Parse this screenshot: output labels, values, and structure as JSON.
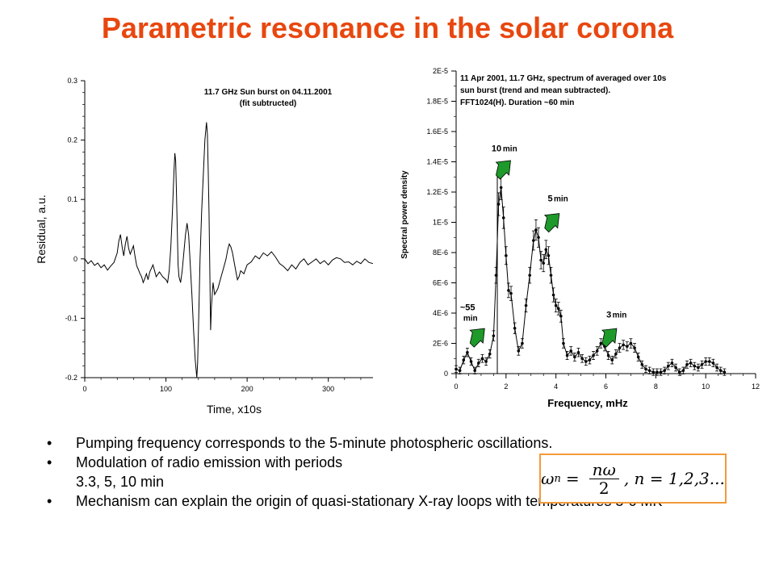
{
  "title": "Parametric resonance in the solar corona",
  "bullets": [
    "Pumping frequency corresponds to the 5-minute photospheric oscillations.",
    "Modulation of radio emission with periods",
    "3.3, 5, 10 min",
    "Mechanism can explain the origin of quasi-stationary X-ray loops with temperatures 3-6 MK"
  ],
  "formula": {
    "lhs": "ω",
    "subscript": "n",
    "equals": "=",
    "numerator": "nω",
    "denominator": "2",
    "tail": ",  n = 1,2,3..."
  },
  "chart_data": [
    {
      "type": "line",
      "annotation": [
        "11.7 GHz Sun burst on 04.11.2001",
        "(fit subtructed)"
      ],
      "xlabel": "Time, x10s",
      "ylabel": "Residual, a.u.",
      "xlim": [
        0,
        355
      ],
      "ylim": [
        -0.2,
        0.3
      ],
      "xticks": [
        0,
        100,
        200,
        300
      ],
      "yticks": [
        -0.2,
        -0.1,
        0,
        0.1,
        0.2,
        0.3
      ],
      "ytick_labels": [
        "-0.2",
        "-0.1",
        "0",
        "0.1",
        "0.2",
        "0.3"
      ],
      "grid": false,
      "series": [
        {
          "x": [
            0,
            4,
            8,
            12,
            16,
            20,
            24,
            28,
            32,
            36,
            40,
            42,
            44,
            46,
            48,
            50,
            52,
            54,
            56,
            58,
            60,
            62,
            64,
            66,
            68,
            70,
            72,
            74,
            76,
            78,
            80,
            84,
            88,
            92,
            96,
            100,
            102,
            104,
            106,
            108,
            110,
            111,
            112,
            113,
            114,
            115,
            116,
            118,
            120,
            122,
            124,
            126,
            128,
            130,
            132,
            134,
            136,
            138,
            139,
            140,
            141,
            142,
            144,
            146,
            148,
            150,
            151,
            152,
            153,
            154,
            155,
            156,
            158,
            160,
            162,
            164,
            166,
            168,
            170,
            172,
            174,
            176,
            178,
            180,
            182,
            184,
            186,
            188,
            190,
            192,
            196,
            200,
            205,
            210,
            215,
            220,
            225,
            230,
            235,
            240,
            245,
            250,
            255,
            260,
            265,
            270,
            275,
            280,
            285,
            290,
            295,
            300,
            305,
            310,
            315,
            320,
            325,
            330,
            335,
            340,
            345,
            350,
            355
          ],
          "y": [
            0.0,
            -0.008,
            -0.003,
            -0.011,
            -0.007,
            -0.015,
            -0.01,
            -0.019,
            -0.012,
            -0.006,
            0.01,
            0.03,
            0.041,
            0.02,
            0.005,
            0.025,
            0.038,
            0.018,
            0.008,
            0.015,
            0.022,
            0.004,
            -0.012,
            -0.018,
            -0.025,
            -0.03,
            -0.04,
            -0.033,
            -0.025,
            -0.035,
            -0.022,
            -0.01,
            -0.03,
            -0.022,
            -0.03,
            -0.035,
            -0.04,
            -0.02,
            0.02,
            0.08,
            0.15,
            0.178,
            0.165,
            0.11,
            0.05,
            -0.01,
            -0.03,
            -0.04,
            -0.02,
            0.01,
            0.04,
            0.06,
            0.04,
            -0.01,
            -0.06,
            -0.12,
            -0.17,
            -0.2,
            -0.175,
            -0.12,
            -0.06,
            0.0,
            0.08,
            0.14,
            0.2,
            0.23,
            0.21,
            0.15,
            0.08,
            -0.02,
            -0.12,
            -0.08,
            -0.04,
            -0.06,
            -0.055,
            -0.05,
            -0.04,
            -0.03,
            -0.02,
            -0.01,
            0.0,
            0.015,
            0.025,
            0.02,
            0.01,
            -0.005,
            -0.02,
            -0.035,
            -0.03,
            -0.02,
            -0.025,
            -0.01,
            -0.005,
            0.005,
            0.0,
            0.01,
            0.005,
            0.012,
            0.003,
            -0.008,
            -0.013,
            -0.02,
            -0.01,
            -0.017,
            -0.006,
            0.0,
            -0.01,
            -0.005,
            0.0,
            -0.008,
            -0.003,
            -0.01,
            -0.002,
            0.002,
            0.0,
            -0.006,
            -0.005,
            -0.01,
            -0.004,
            -0.008,
            0.0,
            -0.006,
            -0.008
          ]
        }
      ]
    },
    {
      "type": "line",
      "annotation": [
        "11 Apr 2001, 11.7 GHz, spectrum of  averaged over 10s",
        "sun burst (trend and mean subtracted).",
        "FFT1024(H). Duration ~60 min"
      ],
      "xlabel": "Frequency, mHz",
      "ylabel": "Spectral power density",
      "xlim": [
        0,
        12
      ],
      "ylim": [
        0,
        2e-05
      ],
      "xticks": [
        0,
        2,
        4,
        6,
        8,
        10,
        12
      ],
      "yticks": [
        0,
        2e-06,
        4e-06,
        6e-06,
        8e-06,
        1e-05,
        1.2e-05,
        1.4e-05,
        1.6e-05,
        1.8e-05,
        2e-05
      ],
      "ytick_labels": [
        "0",
        "2E-6",
        "4E-6",
        "6E-6",
        "8E-6",
        "1E-5",
        "1.2E-5",
        "1.4E-5",
        "1.6E-5",
        "1.8E-5",
        "2E-5"
      ],
      "grid": false,
      "vline_x": 1.65,
      "peak_labels": [
        {
          "text": "~55",
          "text2": "min",
          "x": 0.3
        },
        {
          "text": "10",
          "text2": "min",
          "x": 1.65
        },
        {
          "text": "5",
          "text2": "min",
          "x": 3.3
        },
        {
          "text": "3",
          "text2": "min",
          "x": 5.6
        }
      ],
      "series": [
        {
          "x": [
            0,
            0.15,
            0.3,
            0.45,
            0.6,
            0.75,
            0.9,
            1.05,
            1.2,
            1.35,
            1.5,
            1.6,
            1.7,
            1.8,
            1.9,
            2.0,
            2.1,
            2.2,
            2.35,
            2.5,
            2.65,
            2.8,
            2.95,
            3.1,
            3.2,
            3.3,
            3.4,
            3.5,
            3.6,
            3.7,
            3.8,
            3.9,
            4.0,
            4.1,
            4.2,
            4.3,
            4.45,
            4.6,
            4.75,
            4.9,
            5.05,
            5.2,
            5.35,
            5.5,
            5.65,
            5.8,
            5.95,
            6.1,
            6.25,
            6.4,
            6.55,
            6.7,
            6.85,
            7.0,
            7.15,
            7.3,
            7.45,
            7.6,
            7.75,
            7.9,
            8.05,
            8.2,
            8.35,
            8.5,
            8.65,
            8.8,
            8.95,
            9.1,
            9.25,
            9.4,
            9.55,
            9.7,
            9.85,
            10.0,
            10.15,
            10.3,
            10.45,
            10.6,
            10.75
          ],
          "y": [
            3e-07,
            2e-07,
            9e-07,
            1.4e-06,
            8e-07,
            2e-07,
            7e-07,
            1e-06,
            8e-07,
            1.3e-06,
            2.5e-06,
            6.5e-06,
            1.12e-05,
            1.23e-05,
            1.03e-05,
            7.8e-06,
            5.5e-06,
            5.3e-06,
            3e-06,
            1.5e-06,
            2e-06,
            4.5e-06,
            6.5e-06,
            8.8e-06,
            9.5e-06,
            9e-06,
            7.5e-06,
            7.3e-06,
            8.2e-06,
            7.8e-06,
            6.5e-06,
            5.2e-06,
            4.5e-06,
            4.3e-06,
            3.8e-06,
            2e-06,
            1.2e-06,
            1.5e-06,
            1.1e-06,
            1.4e-06,
            1e-06,
            8e-07,
            9e-07,
            1.2e-06,
            1.5e-06,
            2e-06,
            1.8e-06,
            1.2e-06,
            9e-07,
            1.3e-06,
            1.7e-06,
            1.9e-06,
            1.8e-06,
            2e-06,
            1.7e-06,
            1.1e-06,
            6e-07,
            3e-07,
            2e-07,
            1e-07,
            1e-07,
            1e-07,
            2e-07,
            5e-07,
            7e-07,
            4e-07,
            1e-07,
            2e-07,
            6e-07,
            7e-07,
            5e-07,
            4e-07,
            6e-07,
            8e-07,
            8e-07,
            7e-07,
            4e-07,
            2e-07,
            1e-07
          ]
        }
      ]
    }
  ]
}
